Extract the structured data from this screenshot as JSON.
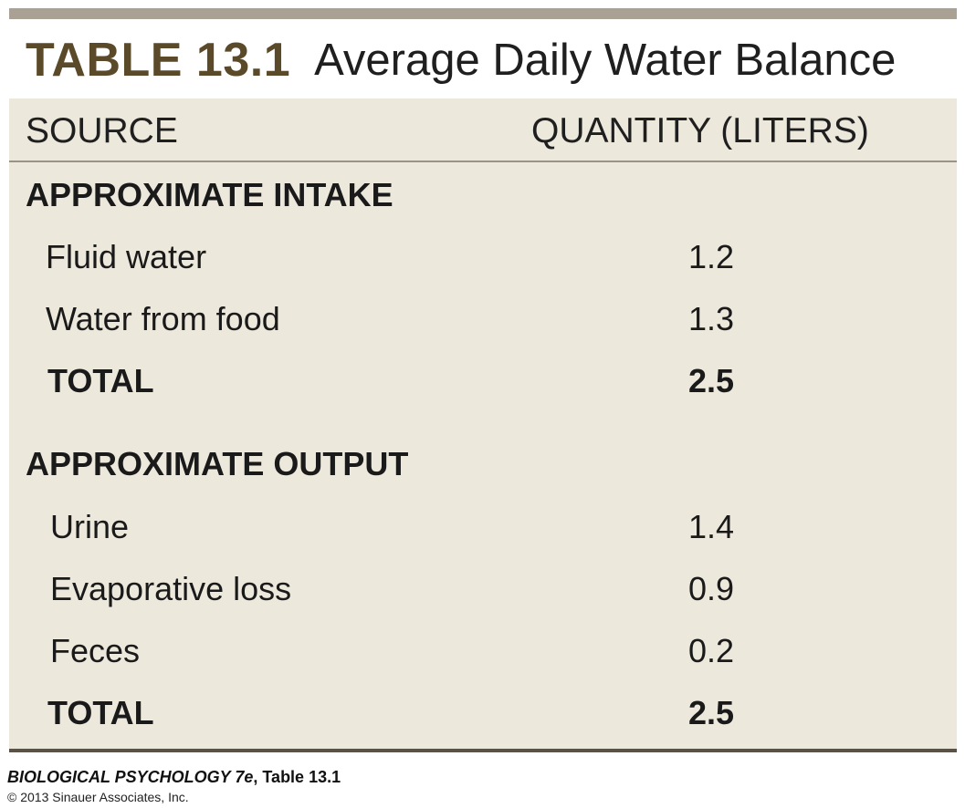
{
  "table": {
    "label": "TABLE 13.1",
    "title": "Average Daily Water Balance",
    "headers": {
      "source": "SOURCE",
      "quantity": "QUANTITY (LITERS)"
    },
    "intake": {
      "heading": "APPROXIMATE INTAKE",
      "rows": [
        {
          "label": "Fluid water",
          "value": "1.2"
        },
        {
          "label": "Water from food",
          "value": "1.3"
        }
      ],
      "total_label": "TOTAL",
      "total_value": "2.5"
    },
    "output": {
      "heading": "APPROXIMATE OUTPUT",
      "rows": [
        {
          "label": "Urine",
          "value": "1.4"
        },
        {
          "label": "Evaporative loss",
          "value": "0.9"
        },
        {
          "label": "Feces",
          "value": "0.2"
        }
      ],
      "total_label": "TOTAL",
      "total_value": "2.5"
    }
  },
  "footer": {
    "book_title": "BIOLOGICAL PSYCHOLOGY 7e",
    "table_ref": ", Table 13.1",
    "copyright": "© 2013 Sinauer Associates, Inc."
  },
  "colors": {
    "panel_background": "#ede8dc",
    "title_label": "#5a4a2a",
    "top_rule": "#a9a193"
  }
}
